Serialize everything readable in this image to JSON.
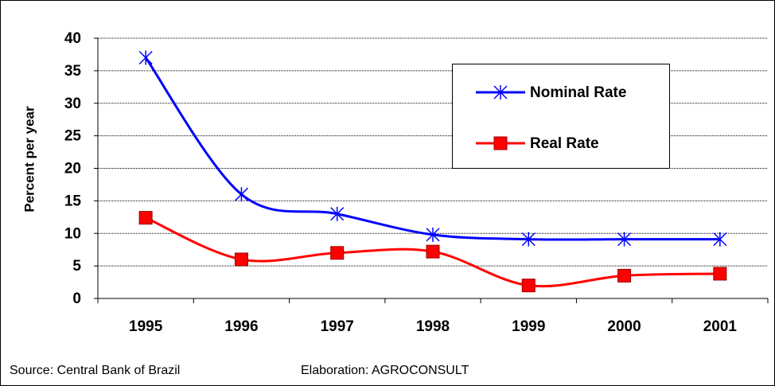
{
  "chart_data": {
    "type": "line",
    "y_label": "Percent per year",
    "categories": [
      "1995",
      "1996",
      "1997",
      "1998",
      "1999",
      "2000",
      "2001"
    ],
    "series": [
      {
        "name": "Nominal Rate",
        "color": "#0000ff",
        "marker": "asterisk",
        "values": [
          37,
          16,
          13,
          9.8,
          9.1,
          9.1,
          9.1
        ]
      },
      {
        "name": "Real Rate",
        "color": "#ff0000",
        "marker": "square",
        "values": [
          12.4,
          6,
          7,
          7.2,
          2,
          3.5,
          3.8
        ]
      }
    ],
    "ylim": [
      0,
      40
    ],
    "yticks": [
      0,
      5,
      10,
      15,
      20,
      25,
      30,
      35,
      40
    ],
    "grid": true,
    "source": "Source: Central Bank of Brazil",
    "credit": "Elaboration: AGROCONSULT"
  }
}
